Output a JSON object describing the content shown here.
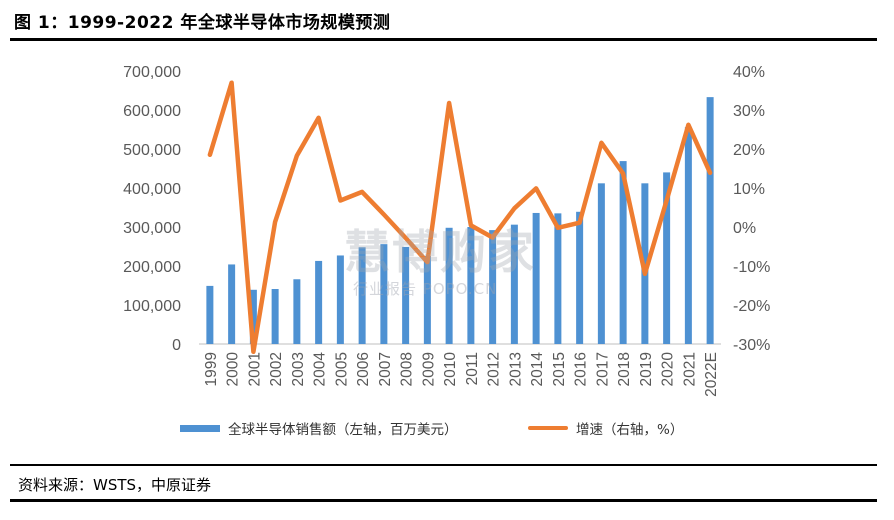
{
  "title": "图 1：1999-2022 年全球半导体市场规模预测",
  "source": "资料来源：WSTS，中原证券",
  "watermark": {
    "main": "慧博购家",
    "sub": "行业报告 POPO.CN"
  },
  "colors": {
    "bar": "#4e91d2",
    "line": "#ee7d31",
    "axis_text": "#595959"
  },
  "chart_data": {
    "type": "bar",
    "categories": [
      "1999",
      "2000",
      "2001",
      "2002",
      "2003",
      "2004",
      "2005",
      "2006",
      "2007",
      "2008",
      "2009",
      "2010",
      "2011",
      "2012",
      "2013",
      "2014",
      "2015",
      "2016",
      "2017",
      "2018",
      "2019",
      "2020",
      "2021",
      "2022E"
    ],
    "series": [
      {
        "name": "全球半导体销售额（左轴，百万美元）",
        "type": "bar",
        "axis": "left",
        "values": [
          149000,
          204000,
          139000,
          141000,
          166000,
          213000,
          227000,
          248000,
          256000,
          249000,
          226000,
          298000,
          300000,
          292000,
          306000,
          336000,
          335000,
          339000,
          412000,
          469000,
          412000,
          440000,
          556000,
          633000
        ]
      },
      {
        "name": "增速（右轴，%）",
        "type": "line",
        "axis": "right",
        "values": [
          18.5,
          37.0,
          -32.0,
          1.3,
          18.3,
          28.0,
          6.8,
          9.0,
          3.2,
          -2.8,
          -9.0,
          31.8,
          0.4,
          -2.7,
          4.8,
          9.9,
          -0.2,
          1.1,
          21.6,
          13.7,
          -12.0,
          6.8,
          26.2,
          13.9
        ]
      }
    ],
    "yleft": {
      "ticks": [
        "0",
        "100,000",
        "200,000",
        "300,000",
        "400,000",
        "500,000",
        "600,000",
        "700,000"
      ],
      "lim": [
        0,
        700000
      ]
    },
    "yright": {
      "ticks": [
        "-30%",
        "-20%",
        "-10%",
        "0%",
        "10%",
        "20%",
        "30%",
        "40%"
      ],
      "lim": [
        -30,
        40
      ]
    },
    "legend": [
      {
        "label": "全球半导体销售额（左轴，百万美元）",
        "kind": "bar"
      },
      {
        "label": "增速（右轴，%）",
        "kind": "line"
      }
    ],
    "legend_position": "bottom",
    "grid": false
  }
}
